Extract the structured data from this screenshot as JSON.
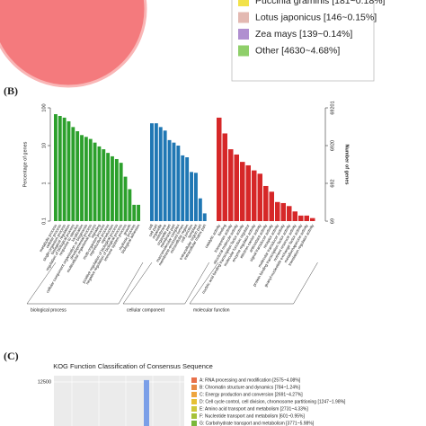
{
  "panel_labels": [
    "(B)",
    "(C)"
  ],
  "chart_data": [
    {
      "type": "pie-legend",
      "series": [
        {
          "name": "Puccinia graminis [181~0.18%]",
          "color": "#f2e24a"
        },
        {
          "name": "Lotus japonicus [146~0.15%]",
          "color": "#e3b9b2"
        },
        {
          "name": "Zea mays [139~0.14%]",
          "color": "#b08fd0"
        },
        {
          "name": "Other [4630~4.68%]",
          "color": "#8fcf6a"
        }
      ]
    },
    {
      "type": "go-bar",
      "log_y": true,
      "ylabel": "Percentage of genes",
      "y2label": "Number of genes",
      "ylim": [
        0.1,
        100
      ],
      "yticks": [
        0.1,
        1,
        10,
        100
      ],
      "y2lim": [
        69.201,
        69201
      ],
      "y2ticks": [
        69,
        692,
        6920,
        69201
      ],
      "groups": [
        {
          "name": "biological process",
          "color": "#2ca02c",
          "categories": [
            "metabolic process",
            "cellular process",
            "single-organism process",
            "biological regulation",
            "regulation of biological process",
            "response to stimulus",
            "localization",
            "cellular component organization or biogenesis",
            "developmental process",
            "multicellular organismal process",
            "signaling",
            "multi-organism process",
            "reproductive process",
            "reproduction",
            "positive regulation of biological process",
            "negative regulation of biological process",
            "immune system process",
            "growth",
            "rhythmic process",
            "biological adhesion"
          ],
          "values": [
            68,
            61,
            55,
            44,
            31,
            24,
            19,
            17,
            15,
            12,
            9.5,
            8,
            6.4,
            5.2,
            4.4,
            3.5,
            1.5,
            0.7,
            0.27,
            0.27
          ]
        },
        {
          "name": "cellular component",
          "color": "#1f77b4",
          "categories": [
            "cell",
            "cell part",
            "organelle",
            "membrane",
            "organelle part",
            "membrane part",
            "macromolecular complex",
            "membrane-enclosed lumen",
            "extracellular region",
            "cell junction",
            "symplast",
            "extracellular region part",
            "extracellular matrix part"
          ],
          "values": [
            39,
            39,
            31,
            25,
            14,
            12,
            10,
            5.5,
            4.9,
            2,
            1.9,
            0.4,
            0.16
          ]
        },
        {
          "name": "molecular function",
          "color": "#d62728",
          "categories": [
            "catalytic activity",
            "binding",
            "transporter activity",
            "structural molecule activity",
            "nucleic acid binding transcription factor activity",
            "molecular function regulator",
            "enzyme regulator activity",
            "electron carrier activity",
            "antioxidant activity",
            "signal transducer activity",
            "receptor activity",
            "molecular transducer activity",
            "protein binding transcription factor activity",
            "nutrient reservoir activity",
            "guanyl-nucleotide exchange factor activity",
            "metallochaperone activity",
            "translation regulator activity"
          ],
          "values": [
            55,
            21,
            8,
            5.8,
            3.7,
            3,
            2.2,
            1.8,
            0.85,
            0.6,
            0.32,
            0.3,
            0.25,
            0.18,
            0.14,
            0.14,
            0.12
          ]
        }
      ]
    },
    {
      "type": "kog-bar",
      "title": "KOG Function Classification of Consensus Sequence",
      "ylim": [
        0,
        13500
      ],
      "yticks": [
        12500
      ],
      "peak": {
        "value": 12800,
        "color": "#7b9fe8"
      },
      "legend": [
        {
          "name": "A: RNA processing and modification [2575~4.08%]",
          "color": "#e8704a"
        },
        {
          "name": "B: Chromatin structure and dynamics [784~1.24%]",
          "color": "#e88a45"
        },
        {
          "name": "C: Energy production and conversion [2691~4.27%]",
          "color": "#eea640"
        },
        {
          "name": "D: Cell cycle control, cell division, chromosome partitioning [1247~1.98%]",
          "color": "#e6c035"
        },
        {
          "name": "E: Amino acid transport and metabolism [2731~4.33%]",
          "color": "#cfc83a"
        },
        {
          "name": "F: Nucleotide transport and metabolism [601~0.95%]",
          "color": "#a6c23a"
        },
        {
          "name": "G: Carbohydrate transport and metabolism [3771~5.98%]",
          "color": "#7ab83a"
        }
      ]
    }
  ]
}
